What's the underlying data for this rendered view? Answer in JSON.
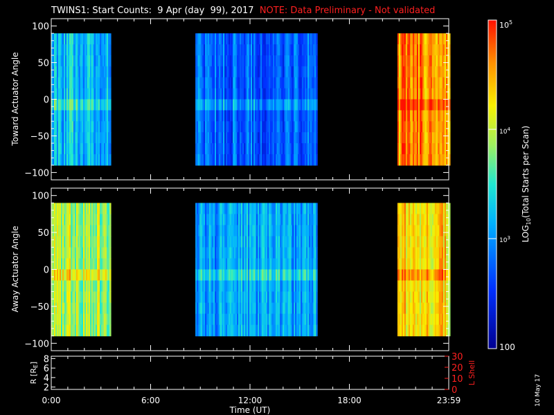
{
  "title": {
    "main": "TWINS1: Start Counts:  9 Apr (day  99), 2017",
    "note": "NOTE: Data Preliminary - Not validated"
  },
  "datestamp": "10 May 17",
  "colors": {
    "background": "#000000",
    "axes": "#ffffff",
    "note": "#ff2020",
    "lshell": "#ff2020"
  },
  "chart_data": [
    {
      "type": "heatmap",
      "panel": "top",
      "ylabel": "Toward Actuator Angle",
      "ylim": [
        -110,
        110
      ],
      "y_ticks": [
        100,
        50,
        0,
        -50,
        -100
      ],
      "y_extent": [
        -90,
        90
      ],
      "xlim": [
        0,
        24
      ],
      "data_blocks_hours": [
        [
          0,
          3.55
        ],
        [
          8.7,
          16.0
        ],
        [
          20.9,
          24.0
        ]
      ],
      "block_typical_log10_counts": [
        3.2,
        2.8,
        4.6
      ]
    },
    {
      "type": "heatmap",
      "panel": "bottom",
      "ylabel": "Away Actuator Angle",
      "ylim": [
        -110,
        110
      ],
      "y_ticks": [
        100,
        50,
        0,
        -50,
        -100
      ],
      "y_extent": [
        -90,
        90
      ],
      "xlim": [
        0,
        24
      ],
      "data_blocks_hours": [
        [
          0,
          3.55
        ],
        [
          8.7,
          16.0
        ],
        [
          20.9,
          24.0
        ]
      ],
      "block_typical_log10_counts": [
        3.9,
        3.1,
        4.3
      ]
    },
    {
      "type": "line",
      "panel": "ephemeris",
      "ylabel_left": "R [R",
      "ylabel_left_sub": "E",
      "ylabel_left_close": "]",
      "left_ticks": [
        "8",
        "6",
        "4",
        "2"
      ],
      "ylim_left": [
        1.5,
        8.5
      ],
      "ylabel_right": "L Shell",
      "right_ticks": [
        "30",
        "20",
        "10",
        "0"
      ],
      "ylim_right": [
        0,
        30
      ],
      "xlabel": "Time (UT)",
      "x_ticks": [
        0,
        6,
        12,
        18,
        24
      ],
      "x_tick_labels": [
        "0:00",
        "6:00",
        "12:00",
        "18:00",
        "23:59"
      ]
    }
  ],
  "colorbar": {
    "label_prefix": "LOG",
    "label_sub": "10",
    "label_suffix": "(Total Starts per Scan)",
    "scale": "log",
    "range": [
      100,
      100000
    ],
    "tick_labels": {
      "top_base": "10",
      "top_exp": "5",
      "mid_base": "10",
      "mid_exp": "4",
      "low_base": "10",
      "low_exp": "3",
      "bottom": "100"
    }
  }
}
